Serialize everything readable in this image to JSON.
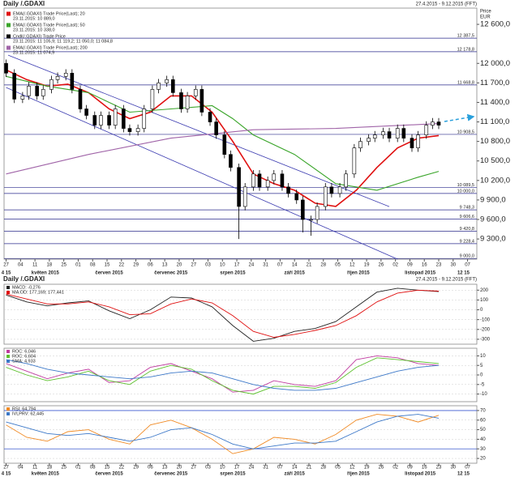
{
  "chart_data": [
    {
      "type": "candlestick",
      "title": "Daily /.GDAXI",
      "date_range": "27.4.2015 - 9.12.2015 (FFT)",
      "axis_label": "Price",
      "axis_unit": "EUR",
      "xlim": [
        -1,
        228.5
      ],
      "xticks": [
        {
          "value": 0,
          "label": "27"
        },
        {
          "value": 7,
          "label": "04"
        },
        {
          "value": 14,
          "label": "11"
        },
        {
          "value": 21,
          "label": "18"
        },
        {
          "value": 28,
          "label": "25"
        },
        {
          "value": 35,
          "label": "01"
        },
        {
          "value": 42,
          "label": "08"
        },
        {
          "value": 49,
          "label": "15"
        },
        {
          "value": 56,
          "label": "22"
        },
        {
          "value": 63,
          "label": "29"
        },
        {
          "value": 70,
          "label": "06"
        },
        {
          "value": 77,
          "label": "13"
        },
        {
          "value": 84,
          "label": "20"
        },
        {
          "value": 91,
          "label": "27"
        },
        {
          "value": 98,
          "label": "03"
        },
        {
          "value": 105,
          "label": "10"
        },
        {
          "value": 112,
          "label": "17"
        },
        {
          "value": 119,
          "label": "24"
        },
        {
          "value": 126,
          "label": "31"
        },
        {
          "value": 133,
          "label": "07"
        },
        {
          "value": 140,
          "label": "14"
        },
        {
          "value": 147,
          "label": "21"
        },
        {
          "value": 154,
          "label": "28"
        },
        {
          "value": 161,
          "label": "05"
        },
        {
          "value": 168,
          "label": "12"
        },
        {
          "value": 175,
          "label": "19"
        },
        {
          "value": 182,
          "label": "26"
        },
        {
          "value": 189,
          "label": "02"
        },
        {
          "value": 196,
          "label": "09"
        },
        {
          "value": 203,
          "label": "16"
        },
        {
          "value": 210,
          "label": "23"
        },
        {
          "value": 217,
          "label": "30"
        },
        {
          "value": 224,
          "label": "07"
        }
      ],
      "period_labels": {
        "x": [
          0,
          19,
          50,
          80,
          110,
          140,
          171,
          201,
          222
        ],
        "labels": [
          "4 15",
          "květen 2015",
          "červen 2015",
          "červenec 2015",
          "srpen 2015",
          "září 2015",
          "říjen 2015",
          "listopad 2015",
          "12 15"
        ]
      },
      "ylim": [
        8990,
        12850
      ],
      "yticks": [
        {
          "value": 12600,
          "label": "12 600,0"
        },
        {
          "value": 12000,
          "label": "12 000,0"
        },
        {
          "value": 11700,
          "label": "11 700,0"
        },
        {
          "value": 11400,
          "label": "11 400,0"
        },
        {
          "value": 11100,
          "label": "11 100,0"
        },
        {
          "value": 10800,
          "label": "10 800,0"
        },
        {
          "value": 10500,
          "label": "10 500,0"
        },
        {
          "value": 10200,
          "label": "10 200,0"
        },
        {
          "value": 9900,
          "label": "9 900,0"
        },
        {
          "value": 9600,
          "label": "9 600,0"
        },
        {
          "value": 9300,
          "label": "9 300,0"
        }
      ],
      "candles": {
        "name": "Cndl(/.GDAXI) Trade Price",
        "last": "23.11.2015: 11 105,9; 11 119,2; 11 050,0; 11 084,8",
        "color": "#000000",
        "up_color": "#ffffff",
        "down_color": "#000000",
        "x": [
          0,
          4,
          8,
          11,
          15,
          18,
          22,
          25,
          29,
          32,
          36,
          39,
          43,
          46,
          50,
          53,
          57,
          60,
          64,
          67,
          71,
          74,
          78,
          81,
          85,
          88,
          92,
          95,
          99,
          102,
          106,
          109,
          113,
          116,
          120,
          123,
          127,
          130,
          134,
          137,
          141,
          144,
          148,
          151,
          155,
          158,
          162,
          165,
          169,
          172,
          176,
          179,
          183,
          186,
          190,
          193,
          197,
          200,
          204,
          207,
          210
        ],
        "open": [
          12000,
          11850,
          11450,
          11500,
          11650,
          11500,
          11600,
          11750,
          11800,
          11850,
          11600,
          11300,
          11200,
          11050,
          11200,
          11050,
          11300,
          11000,
          10950,
          11000,
          11300,
          11600,
          11700,
          11750,
          11550,
          11300,
          11500,
          11600,
          11250,
          11100,
          10900,
          10600,
          10400,
          9800,
          10100,
          10300,
          10100,
          10200,
          10300,
          10100,
          10000,
          9900,
          9600,
          9600,
          9800,
          10100,
          10000,
          10100,
          10300,
          10700,
          10800,
          10850,
          10900,
          10950,
          10850,
          11000,
          10850,
          10700,
          10900,
          11050,
          11100
        ],
        "high": [
          12060,
          11910,
          11560,
          11710,
          11710,
          11660,
          11810,
          11860,
          11910,
          11910,
          11660,
          11360,
          11260,
          11260,
          11260,
          11360,
          11360,
          11060,
          11060,
          11360,
          11660,
          11760,
          11810,
          11810,
          11610,
          11560,
          11660,
          11660,
          11310,
          11160,
          10960,
          10660,
          10460,
          10160,
          10360,
          10360,
          10260,
          10360,
          10360,
          10160,
          10060,
          9960,
          9660,
          9860,
          10160,
          10160,
          10160,
          10360,
          10760,
          10860,
          10910,
          10960,
          11010,
          11010,
          11060,
          11060,
          10910,
          10960,
          11110,
          11160,
          11160
        ],
        "low": [
          11790,
          11390,
          11390,
          11440,
          11440,
          11440,
          11540,
          11690,
          11740,
          11540,
          11240,
          11140,
          10990,
          10990,
          10990,
          10990,
          10940,
          10890,
          10890,
          10940,
          11240,
          11540,
          11640,
          11490,
          11240,
          11240,
          11440,
          11190,
          11040,
          10840,
          10540,
          10340,
          9300,
          9740,
          10040,
          10040,
          10040,
          10140,
          10040,
          9940,
          9840,
          9400,
          9350,
          9540,
          9740,
          9940,
          9940,
          10040,
          10240,
          10640,
          10740,
          10790,
          10840,
          10790,
          10790,
          10790,
          10640,
          10640,
          10840,
          10990,
          10990
        ],
        "close": [
          11850,
          11450,
          11500,
          11650,
          11500,
          11600,
          11750,
          11800,
          11850,
          11600,
          11300,
          11200,
          11050,
          11200,
          11050,
          11300,
          11000,
          10950,
          11000,
          11300,
          11600,
          11700,
          11750,
          11550,
          11300,
          11500,
          11600,
          11250,
          11100,
          10900,
          10600,
          10400,
          9800,
          10100,
          10300,
          10100,
          10200,
          10300,
          10100,
          10000,
          9900,
          9600,
          9600,
          9800,
          10100,
          10000,
          10100,
          10300,
          10700,
          10800,
          10850,
          10900,
          10950,
          10850,
          11000,
          10850,
          10700,
          10900,
          11050,
          11100,
          11050
        ]
      },
      "series": [
        {
          "name": "EMA(/.GDAXI) Trade Price(Last); 20",
          "last": "23.11.2015: 10 889,0",
          "color": "#e01010",
          "x": [
            0,
            10,
            20,
            30,
            40,
            50,
            60,
            70,
            80,
            90,
            100,
            110,
            120,
            130,
            140,
            150,
            160,
            170,
            180,
            190,
            200,
            210
          ],
          "values": [
            11900,
            11750,
            11650,
            11680,
            11550,
            11300,
            11150,
            11250,
            11500,
            11500,
            11250,
            10800,
            10300,
            10150,
            10050,
            9850,
            9800,
            10050,
            10400,
            10700,
            10850,
            10890
          ]
        },
        {
          "name": "EMA(/.GDAXI) Trade Price(Last); 50",
          "last": "23.11.2015: 10 338,0",
          "color": "#3aa52a",
          "x": [
            0,
            20,
            40,
            60,
            80,
            100,
            110,
            120,
            140,
            160,
            180,
            200,
            210
          ],
          "values": [
            11800,
            11650,
            11550,
            11250,
            11300,
            11350,
            11150,
            10900,
            10600,
            10150,
            10050,
            10250,
            10340
          ]
        },
        {
          "name": "EMA(/.GDAXI) Trade Price(Last); 200",
          "last": "23.11.2015: 11 074,9",
          "color": "#a064a8",
          "x": [
            0,
            40,
            80,
            120,
            160,
            200,
            210
          ],
          "values": [
            10300,
            10600,
            10850,
            10980,
            11000,
            11060,
            11075
          ]
        }
      ],
      "levels": {
        "color": "#2b2b8c",
        "values": [
          12387.5,
          12178.8,
          11668.8,
          10908.5,
          10089.5,
          10000,
          9748.3,
          9606.6,
          9420.8,
          9228.4,
          9000
        ],
        "labels": [
          "12 387,5",
          "12 178,8",
          "11 668,8",
          "10 908,5",
          "10 089,5",
          "10 000,0",
          "9 748,3",
          "9 606,6",
          "9 420,8",
          "9 228,4",
          "9 000,0"
        ]
      },
      "trend_lines": {
        "color": "#3a3ab0",
        "lines": [
          {
            "x": [
              1,
              186
            ],
            "values": [
              12127,
              9798
            ]
          },
          {
            "x": [
              0,
              190
            ],
            "values": [
              11630,
              8990
            ]
          }
        ]
      }
    },
    {
      "type": "line",
      "x": [
        0,
        10,
        20,
        30,
        40,
        50,
        60,
        70,
        80,
        90,
        100,
        110,
        120,
        130,
        140,
        150,
        160,
        170,
        180,
        190,
        200,
        210
      ],
      "ylim": [
        -350,
        260
      ],
      "yticks": [
        200,
        100,
        0,
        -100,
        -200,
        -300
      ],
      "series": [
        {
          "name": "MACD: -0,276",
          "color": "#222222",
          "values": [
            150,
            80,
            40,
            70,
            90,
            -10,
            -90,
            0,
            130,
            120,
            30,
            -160,
            -320,
            -290,
            -220,
            -190,
            -120,
            30,
            180,
            220,
            200,
            185
          ]
        },
        {
          "name": "MA:OD: 177,169; 177,441",
          "color": "#e01010",
          "values": [
            160,
            110,
            60,
            60,
            80,
            30,
            -50,
            -40,
            60,
            110,
            70,
            -60,
            -220,
            -280,
            -250,
            -210,
            -160,
            -60,
            80,
            170,
            200,
            190
          ]
        }
      ]
    },
    {
      "type": "line",
      "x": [
        0,
        10,
        20,
        30,
        40,
        50,
        60,
        70,
        80,
        90,
        100,
        110,
        120,
        130,
        140,
        150,
        160,
        170,
        180,
        190,
        200,
        210
      ],
      "ylim": [
        -14,
        14
      ],
      "yticks": [
        10,
        5,
        0,
        -5,
        -10
      ],
      "series": [
        {
          "name": "ROC: 6,046",
          "color": "#c03ca0",
          "values": [
            6,
            2,
            -2,
            1,
            3,
            -4,
            -3,
            4,
            6,
            2,
            -2,
            -9,
            -8,
            -3,
            -5,
            -6,
            -3,
            8,
            10,
            9,
            6,
            5
          ]
        },
        {
          "name": "ROC: 6,604",
          "color": "#5cc02c",
          "values": [
            4,
            0,
            -3,
            -1,
            2,
            -3,
            -5,
            2,
            5,
            3,
            -3,
            -8,
            -10,
            -6,
            -6,
            -7,
            -4,
            4,
            9,
            8,
            7,
            6
          ]
        },
        {
          "name": "SMA: 4,933",
          "color": "#3c78c8",
          "values": [
            8,
            6,
            3,
            1,
            0,
            -1,
            -2,
            -1,
            1,
            2,
            1,
            -2,
            -5,
            -7,
            -8,
            -8,
            -7,
            -4,
            -1,
            2,
            4,
            5
          ]
        }
      ]
    },
    {
      "type": "line",
      "x": [
        0,
        10,
        20,
        30,
        40,
        50,
        60,
        70,
        80,
        90,
        100,
        110,
        120,
        130,
        140,
        150,
        160,
        170,
        180,
        190,
        200,
        210
      ],
      "ylim": [
        15,
        75
      ],
      "yticks": [
        70,
        60,
        50,
        40,
        30,
        20
      ],
      "reference_levels": {
        "values": [
          70,
          30
        ],
        "color": "#3c5ad0"
      },
      "series": [
        {
          "name": "RSI: 64,794",
          "color": "#f08a24",
          "values": [
            55,
            42,
            38,
            48,
            50,
            40,
            35,
            55,
            60,
            52,
            40,
            25,
            30,
            42,
            40,
            35,
            45,
            60,
            66,
            64,
            58,
            65
          ]
        },
        {
          "name": "IVLPRV: 62,445",
          "color": "#3c78c8",
          "values": [
            58,
            52,
            46,
            44,
            46,
            42,
            38,
            42,
            50,
            52,
            45,
            35,
            30,
            33,
            36,
            36,
            38,
            48,
            58,
            64,
            66,
            62
          ]
        }
      ]
    }
  ]
}
